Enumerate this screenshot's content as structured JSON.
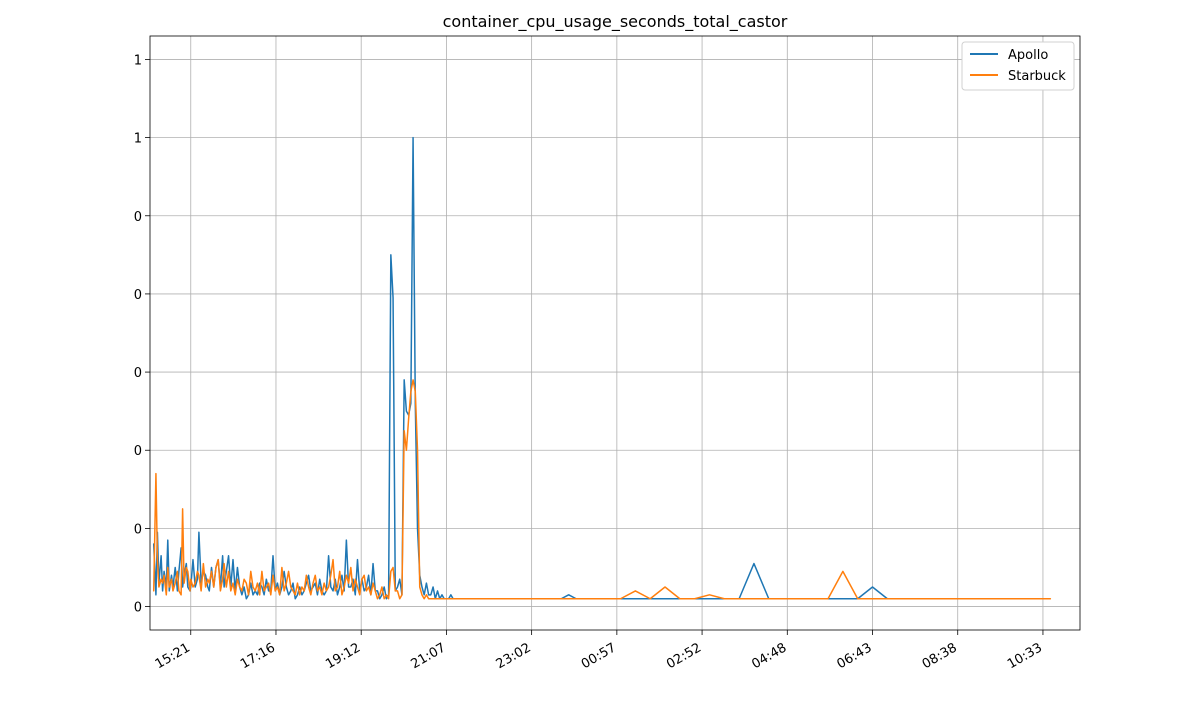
{
  "chart_data": {
    "type": "line",
    "title": "container_cpu_usage_seconds_total_castor",
    "xlabel": "",
    "ylabel": "",
    "x_ticks": [
      "15:21",
      "17:16",
      "19:12",
      "21:07",
      "23:02",
      "00:57",
      "02:52",
      "04:48",
      "06:43",
      "08:38",
      "10:33"
    ],
    "y_ticks": [
      "0",
      "0",
      "0",
      "0",
      "0",
      "0",
      "1",
      "1"
    ],
    "y_tick_values": [
      0.0,
      0.2,
      0.4,
      0.6,
      0.8,
      1.0,
      1.2,
      1.4
    ],
    "x_range_minutes_from_15_21": [
      -55,
      1200
    ],
    "ylim": [
      -0.06,
      1.46
    ],
    "legend_position": "upper right",
    "grid": true,
    "colors": {
      "Apollo": "#1f77b4",
      "Starbuck": "#ff7f0e"
    },
    "series": [
      {
        "name": "Apollo",
        "color": "#1f77b4",
        "x_minutes_from_15_21": [
          -50,
          -47,
          -45,
          -43,
          -40,
          -38,
          -36,
          -33,
          -31,
          -29,
          -26,
          -24,
          -21,
          -18,
          -16,
          -13,
          -11,
          -9,
          -6,
          -4,
          -1,
          0,
          3,
          6,
          9,
          11,
          14,
          17,
          20,
          23,
          25,
          28,
          31,
          34,
          37,
          40,
          43,
          45,
          48,
          51,
          54,
          57,
          60,
          63,
          66,
          69,
          72,
          75,
          78,
          81,
          84,
          87,
          90,
          93,
          96,
          99,
          102,
          105,
          108,
          111,
          114,
          117,
          120,
          123,
          126,
          129,
          132,
          135,
          138,
          141,
          144,
          147,
          150,
          153,
          156,
          159,
          162,
          165,
          168,
          171,
          174,
          177,
          180,
          183,
          186,
          189,
          192,
          195,
          198,
          201,
          204,
          207,
          210,
          213,
          216,
          219,
          222,
          225,
          228,
          231,
          234,
          237,
          240,
          243,
          246,
          249,
          252,
          255,
          258,
          261,
          264,
          267,
          270,
          273,
          276,
          279,
          282,
          285,
          288,
          291,
          294,
          297,
          300,
          303,
          306,
          309,
          312,
          315,
          318,
          321,
          324,
          327,
          330,
          333,
          336,
          339,
          342,
          345,
          348,
          351,
          354,
          357,
          360,
          363,
          366,
          369,
          372,
          375,
          378,
          381,
          384,
          387,
          390,
          393,
          396,
          399,
          402,
          405,
          408,
          411,
          414,
          417,
          420,
          423,
          426,
          429,
          432,
          435,
          438,
          441,
          444,
          447,
          450,
          453,
          456,
          460,
          470,
          480,
          490,
          500,
          510,
          520,
          530,
          540,
          560,
          580,
          600,
          620,
          640,
          660,
          680,
          700,
          720,
          740,
          760,
          780,
          800,
          820,
          840,
          860,
          880,
          900,
          920,
          940,
          960,
          980,
          1000,
          1020,
          1040,
          1060,
          1080,
          1100,
          1120,
          1140,
          1160
        ],
        "y": [
          0.16,
          0.03,
          0.19,
          0.06,
          0.13,
          0.04,
          0.09,
          0.05,
          0.17,
          0.04,
          0.08,
          0.05,
          0.1,
          0.04,
          0.09,
          0.15,
          0.05,
          0.08,
          0.11,
          0.05,
          0.04,
          0.05,
          0.12,
          0.05,
          0.07,
          0.19,
          0.06,
          0.09,
          0.08,
          0.05,
          0.04,
          0.1,
          0.05,
          0.1,
          0.12,
          0.05,
          0.13,
          0.05,
          0.09,
          0.13,
          0.05,
          0.12,
          0.04,
          0.1,
          0.05,
          0.03,
          0.05,
          0.02,
          0.03,
          0.06,
          0.03,
          0.04,
          0.03,
          0.06,
          0.05,
          0.03,
          0.07,
          0.04,
          0.04,
          0.13,
          0.04,
          0.06,
          0.03,
          0.05,
          0.09,
          0.05,
          0.03,
          0.04,
          0.06,
          0.02,
          0.03,
          0.05,
          0.03,
          0.04,
          0.06,
          0.08,
          0.04,
          0.05,
          0.06,
          0.03,
          0.07,
          0.04,
          0.03,
          0.04,
          0.13,
          0.05,
          0.04,
          0.07,
          0.03,
          0.05,
          0.08,
          0.04,
          0.17,
          0.05,
          0.05,
          0.07,
          0.03,
          0.12,
          0.04,
          0.07,
          0.04,
          0.05,
          0.08,
          0.03,
          0.11,
          0.04,
          0.04,
          0.02,
          0.03,
          0.05,
          0.02,
          0.03,
          0.9,
          0.79,
          0.04,
          0.05,
          0.07,
          0.03,
          0.58,
          0.5,
          0.49,
          0.52,
          1.2,
          0.52,
          0.2,
          0.08,
          0.05,
          0.03,
          0.06,
          0.03,
          0.03,
          0.05,
          0.02,
          0.04,
          0.02,
          0.03,
          0.02,
          0.02,
          0.02,
          0.03,
          0.02,
          0.02,
          0.02,
          0.02,
          0.02,
          0.02,
          0.02,
          0.02,
          0.02,
          0.02,
          0.02,
          0.02,
          0.02,
          0.02,
          0.02,
          0.02,
          0.02,
          0.02,
          0.02,
          0.02,
          0.02,
          0.02,
          0.02,
          0.02,
          0.02,
          0.02,
          0.02,
          0.02,
          0.02,
          0.02,
          0.02,
          0.02,
          0.02,
          0.02,
          0.02,
          0.02,
          0.02,
          0.02,
          0.02,
          0.02,
          0.03,
          0.02,
          0.02,
          0.02,
          0.02,
          0.02,
          0.02,
          0.02,
          0.02,
          0.02,
          0.02,
          0.02,
          0.02,
          0.02,
          0.11,
          0.02,
          0.02,
          0.02,
          0.02,
          0.02,
          0.02,
          0.02,
          0.05,
          0.02,
          0.02,
          0.02,
          0.02,
          0.02,
          0.02
        ]
      },
      {
        "name": "Starbuck",
        "color": "#ff7f0e",
        "x_minutes_from_15_21": [
          -50,
          -47,
          -45,
          -43,
          -40,
          -38,
          -36,
          -33,
          -31,
          -29,
          -26,
          -24,
          -21,
          -18,
          -16,
          -13,
          -11,
          -9,
          -6,
          -4,
          -1,
          0,
          3,
          6,
          9,
          11,
          14,
          17,
          20,
          23,
          25,
          28,
          31,
          34,
          37,
          40,
          43,
          45,
          48,
          51,
          54,
          57,
          60,
          63,
          66,
          69,
          72,
          75,
          78,
          81,
          84,
          87,
          90,
          93,
          96,
          99,
          102,
          105,
          108,
          111,
          114,
          117,
          120,
          123,
          126,
          129,
          132,
          135,
          138,
          141,
          144,
          147,
          150,
          153,
          156,
          159,
          162,
          165,
          168,
          171,
          174,
          177,
          180,
          183,
          186,
          189,
          192,
          195,
          198,
          201,
          204,
          207,
          210,
          213,
          216,
          219,
          222,
          225,
          228,
          231,
          234,
          237,
          240,
          243,
          246,
          249,
          252,
          255,
          258,
          261,
          264,
          267,
          270,
          273,
          276,
          279,
          282,
          285,
          288,
          291,
          294,
          297,
          300,
          303,
          306,
          309,
          312,
          315,
          318,
          321,
          324,
          327,
          330,
          333,
          336,
          339,
          342,
          345,
          348,
          351,
          354,
          357,
          360,
          363,
          366,
          369,
          372,
          375,
          378,
          381,
          384,
          387,
          390,
          393,
          396,
          399,
          402,
          405,
          408,
          411,
          414,
          417,
          420,
          423,
          426,
          429,
          432,
          435,
          438,
          441,
          444,
          447,
          450,
          453,
          456,
          460,
          470,
          480,
          490,
          500,
          510,
          520,
          530,
          540,
          560,
          580,
          600,
          620,
          640,
          660,
          680,
          700,
          720,
          740,
          760,
          780,
          800,
          820,
          840,
          860,
          880,
          900,
          920,
          940,
          960,
          980,
          1000,
          1020,
          1040,
          1060,
          1080,
          1100,
          1120,
          1140,
          1160
        ],
        "y": [
          0.04,
          0.34,
          0.12,
          0.05,
          0.07,
          0.06,
          0.08,
          0.03,
          0.1,
          0.05,
          0.07,
          0.04,
          0.06,
          0.09,
          0.04,
          0.03,
          0.25,
          0.06,
          0.1,
          0.09,
          0.04,
          0.07,
          0.05,
          0.06,
          0.09,
          0.08,
          0.04,
          0.11,
          0.05,
          0.07,
          0.06,
          0.09,
          0.05,
          0.1,
          0.12,
          0.04,
          0.07,
          0.11,
          0.05,
          0.09,
          0.04,
          0.06,
          0.03,
          0.07,
          0.05,
          0.04,
          0.07,
          0.06,
          0.03,
          0.09,
          0.05,
          0.04,
          0.06,
          0.03,
          0.09,
          0.04,
          0.05,
          0.06,
          0.03,
          0.08,
          0.04,
          0.05,
          0.03,
          0.1,
          0.04,
          0.06,
          0.09,
          0.05,
          0.04,
          0.03,
          0.06,
          0.03,
          0.05,
          0.04,
          0.08,
          0.05,
          0.03,
          0.06,
          0.08,
          0.04,
          0.05,
          0.03,
          0.06,
          0.04,
          0.05,
          0.08,
          0.12,
          0.04,
          0.05,
          0.09,
          0.03,
          0.05,
          0.08,
          0.06,
          0.1,
          0.04,
          0.07,
          0.05,
          0.03,
          0.07,
          0.08,
          0.04,
          0.05,
          0.03,
          0.06,
          0.04,
          0.02,
          0.03,
          0.05,
          0.02,
          0.03,
          0.02,
          0.09,
          0.1,
          0.04,
          0.04,
          0.02,
          0.03,
          0.45,
          0.4,
          0.48,
          0.55,
          0.58,
          0.55,
          0.4,
          0.05,
          0.03,
          0.02,
          0.03,
          0.02,
          0.02,
          0.02,
          0.02,
          0.02,
          0.02,
          0.02,
          0.02,
          0.02,
          0.02,
          0.02,
          0.02,
          0.02,
          0.02,
          0.02,
          0.02,
          0.02,
          0.02,
          0.02,
          0.02,
          0.02,
          0.02,
          0.02,
          0.02,
          0.02,
          0.02,
          0.02,
          0.02,
          0.02,
          0.02,
          0.02,
          0.02,
          0.02,
          0.02,
          0.02,
          0.02,
          0.02,
          0.02,
          0.02,
          0.02,
          0.02,
          0.02,
          0.02,
          0.02,
          0.02,
          0.02,
          0.02,
          0.02,
          0.02,
          0.02,
          0.02,
          0.02,
          0.02,
          0.02,
          0.02,
          0.02,
          0.02,
          0.04,
          0.02,
          0.05,
          0.02,
          0.02,
          0.03,
          0.02,
          0.02,
          0.02,
          0.02,
          0.02,
          0.02,
          0.02,
          0.02,
          0.09,
          0.02,
          0.02,
          0.02,
          0.02,
          0.02,
          0.02,
          0.02,
          0.02,
          0.02,
          0.02,
          0.02,
          0.02,
          0.02,
          0.02
        ]
      }
    ]
  }
}
